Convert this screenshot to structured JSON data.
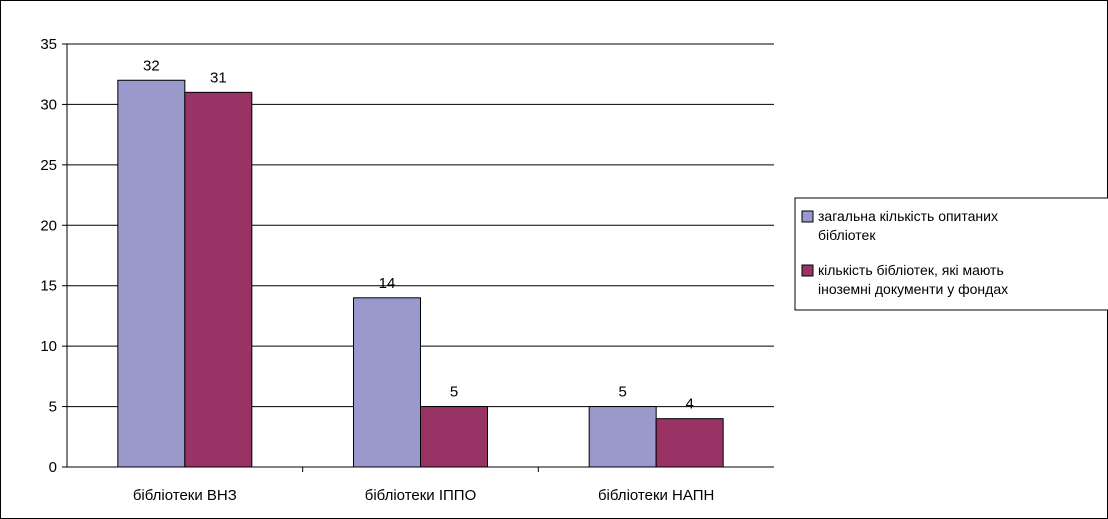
{
  "chart_data": {
    "type": "bar",
    "categories": [
      "бібліотеки ВНЗ",
      "бібліотеки ІППО",
      "бібліотеки НАПН"
    ],
    "series": [
      {
        "name": "загальна кількість опитаних бібліотек",
        "legend_lines": [
          "загальна кількість опитаних",
          "бібліотек"
        ],
        "values": [
          32,
          14,
          5
        ],
        "color": "#9999cc"
      },
      {
        "name": "кількість бібліотек, які мають іноземні документи у фондах",
        "legend_lines": [
          "кількість бібліотек, які мають",
          "іноземні документи у фондах"
        ],
        "values": [
          31,
          5,
          4
        ],
        "color": "#993366"
      }
    ],
    "ylim": [
      0,
      35
    ],
    "yticks": [
      0,
      5,
      10,
      15,
      20,
      25,
      30,
      35
    ],
    "title": "",
    "xlabel": "",
    "ylabel": "",
    "grid": true,
    "legend_position": "right"
  }
}
